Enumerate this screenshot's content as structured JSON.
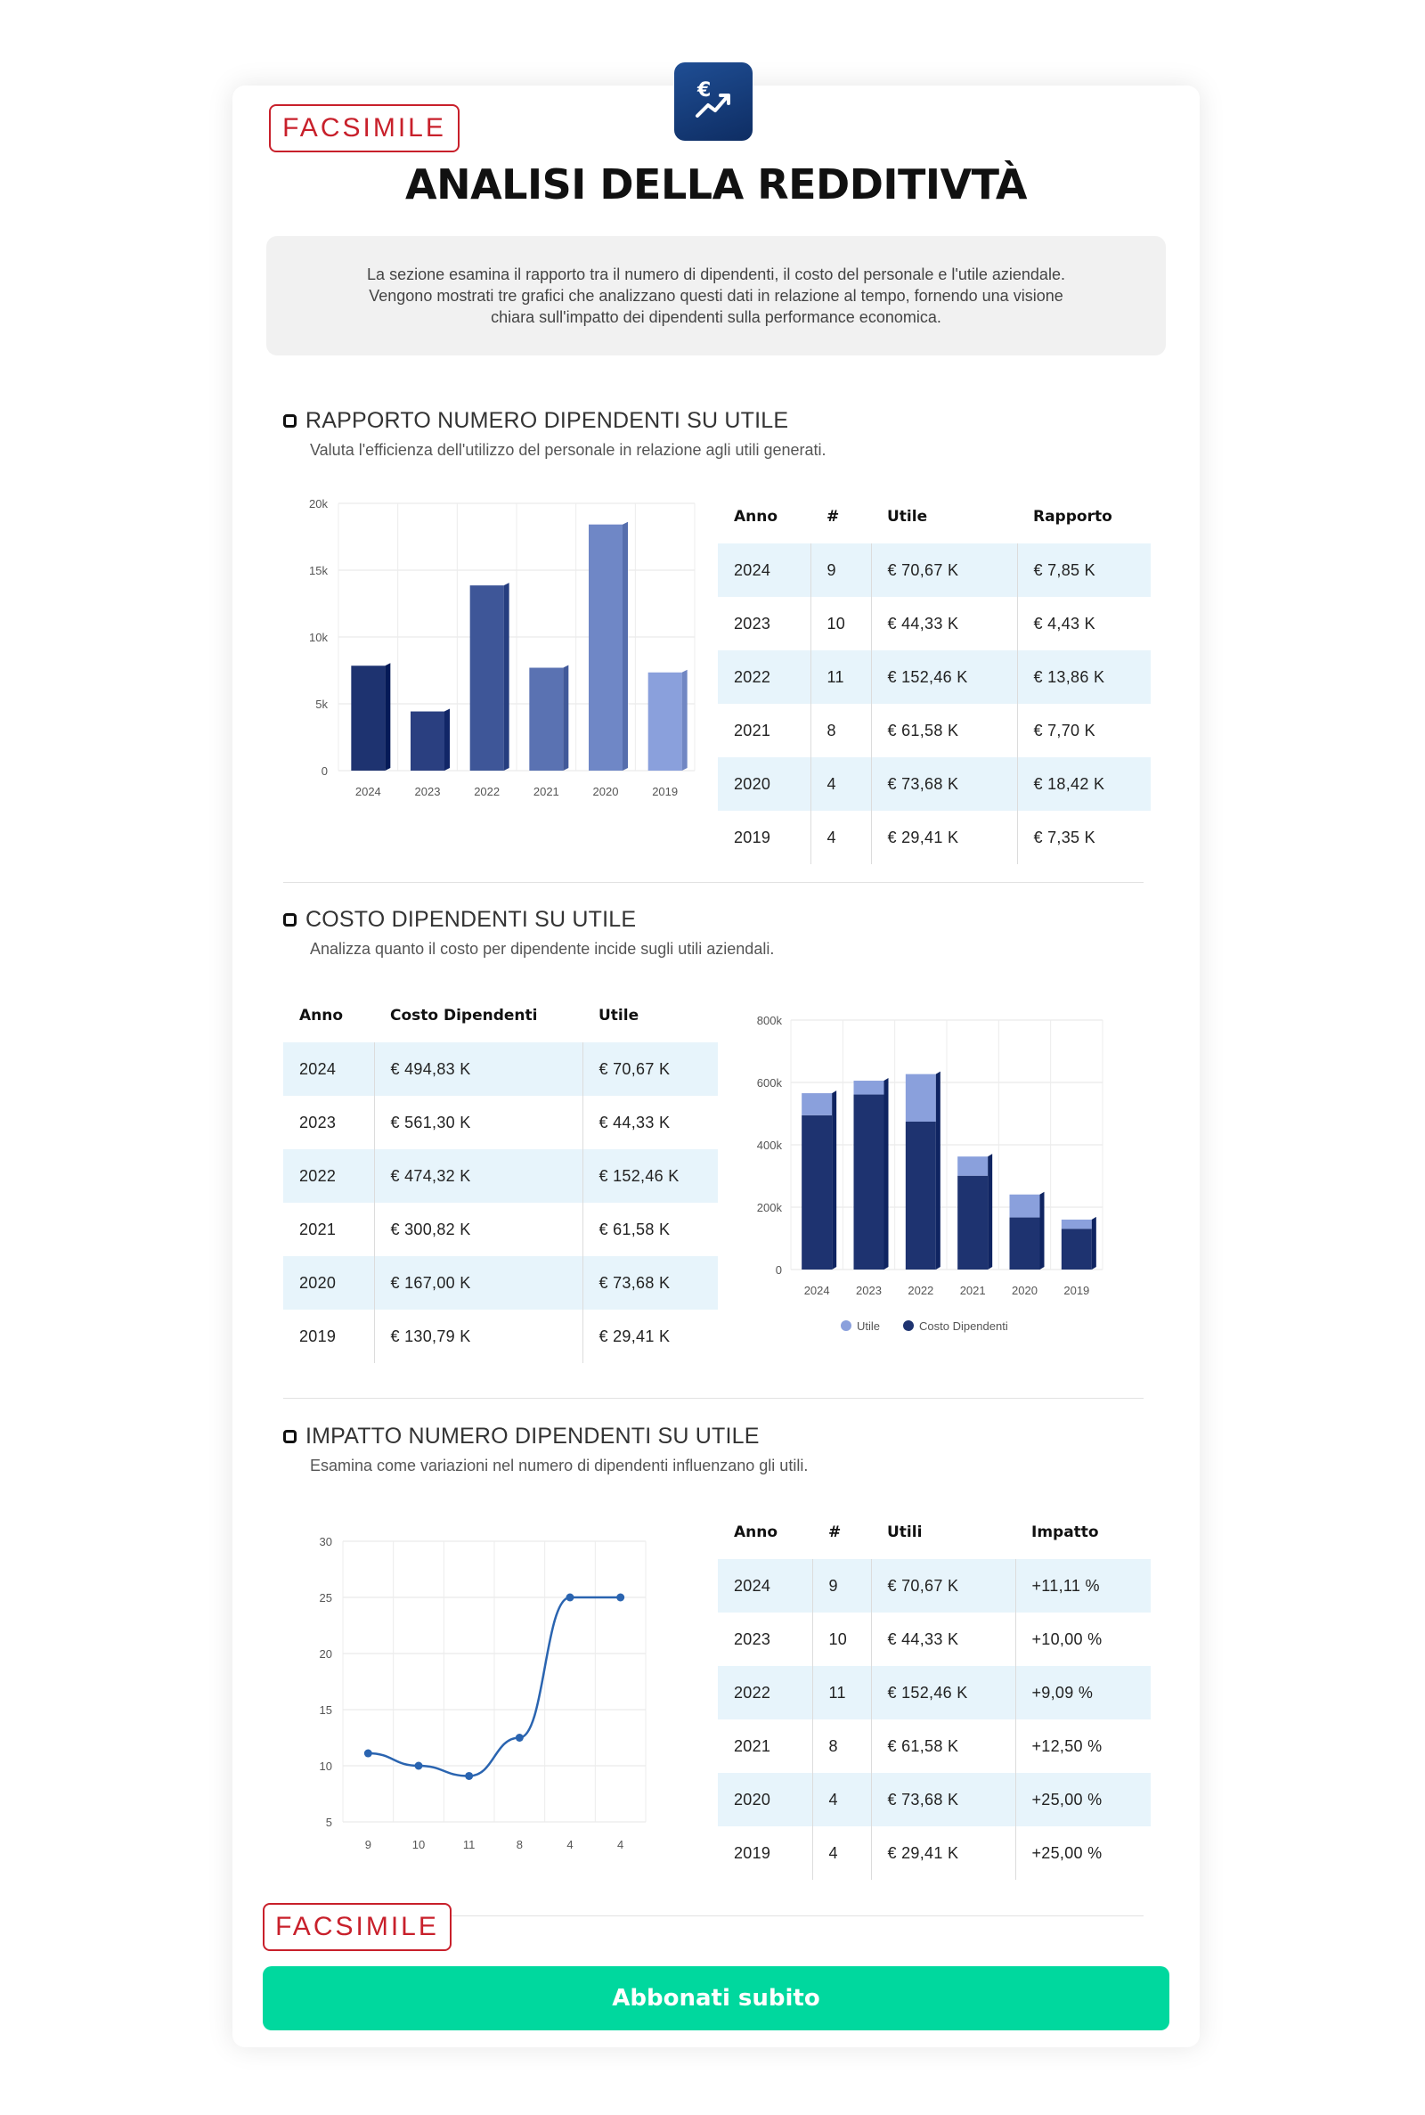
{
  "header": {
    "stamp": "FACSIMILE",
    "title": "ANALISI DELLA REDDITIVTÀ",
    "intro": "La sezione esamina il rapporto tra il numero di dipendenti, il costo del personale e l'utile aziendale. Vengono mostrati tre grafici che analizzano questi dati in relazione al tempo, fornendo una visione chiara sull'impatto dei dipendenti sulla performance economica.",
    "logo_icon": "euro-trend-up-icon",
    "accent": "#1f4e94"
  },
  "section1": {
    "title": "RAPPORTO NUMERO DIPENDENTI SU UTILE",
    "subtitle": "Valuta l'efficienza dell'utilizzo del personale in relazione agli utili generati.",
    "table": {
      "headers": [
        "Anno",
        "#",
        "Utile",
        "Rapporto"
      ],
      "rows": [
        [
          "2024",
          "9",
          "€ 70,67 K",
          "€ 7,85 K"
        ],
        [
          "2023",
          "10",
          "€ 44,33 K",
          "€ 4,43 K"
        ],
        [
          "2022",
          "11",
          "€ 152,46 K",
          "€ 13,86 K"
        ],
        [
          "2021",
          "8",
          "€ 61,58 K",
          "€ 7,70 K"
        ],
        [
          "2020",
          "4",
          "€ 73,68 K",
          "€ 18,42 K"
        ],
        [
          "2019",
          "4",
          "€ 29,41 K",
          "€ 7,35 K"
        ]
      ]
    }
  },
  "section2": {
    "title": "COSTO DIPENDENTI SU UTILE",
    "subtitle": "Analizza quanto il costo per dipendente incide sugli utili aziendali.",
    "table": {
      "headers": [
        "Anno",
        "Costo Dipendenti",
        "Utile"
      ],
      "rows": [
        [
          "2024",
          "€ 494,83 K",
          "€ 70,67 K"
        ],
        [
          "2023",
          "€ 561,30 K",
          "€ 44,33 K"
        ],
        [
          "2022",
          "€ 474,32 K",
          "€ 152,46 K"
        ],
        [
          "2021",
          "€ 300,82 K",
          "€ 61,58 K"
        ],
        [
          "2020",
          "€ 167,00 K",
          "€ 73,68 K"
        ],
        [
          "2019",
          "€ 130,79 K",
          "€ 29,41 K"
        ]
      ]
    }
  },
  "section3": {
    "title": "IMPATTO NUMERO DIPENDENTI SU UTILE",
    "subtitle": "Esamina come variazioni nel numero di dipendenti influenzano gli utili.",
    "table": {
      "headers": [
        "Anno",
        "#",
        "Utili",
        "Impatto"
      ],
      "rows": [
        [
          "2024",
          "9",
          "€ 70,67 K",
          "+11,11 %"
        ],
        [
          "2023",
          "10",
          "€ 44,33 K",
          "+10,00 %"
        ],
        [
          "2022",
          "11",
          "€ 152,46 K",
          "+9,09 %"
        ],
        [
          "2021",
          "8",
          "€ 61,58 K",
          "+12,50 %"
        ],
        [
          "2020",
          "4",
          "€ 73,68 K",
          "+25,00 %"
        ],
        [
          "2019",
          "4",
          "€ 29,41 K",
          "+25,00 %"
        ]
      ]
    }
  },
  "cta": {
    "label": "Abbonati subito",
    "color": "#00d89e"
  },
  "chart_data": [
    {
      "type": "bar",
      "categories": [
        "2024",
        "2023",
        "2022",
        "2021",
        "2020",
        "2019"
      ],
      "values": [
        7850,
        4430,
        13860,
        7700,
        18420,
        7350
      ],
      "ylim": [
        0,
        20000
      ],
      "yticks": [
        "0",
        "5k",
        "10k",
        "15k",
        "20k"
      ],
      "colors": [
        "#1e3370",
        "#2a3f80",
        "#3e5698",
        "#5a72b2",
        "#6f87c6",
        "#8aa0dc"
      ],
      "grid": true
    },
    {
      "type": "bar",
      "stacked": true,
      "categories": [
        "2024",
        "2023",
        "2022",
        "2021",
        "2020",
        "2019"
      ],
      "series": [
        {
          "name": "Costo Dipendenti",
          "values": [
            494.83,
            561.3,
            474.32,
            300.82,
            167.0,
            130.79
          ],
          "color": "#1e3370"
        },
        {
          "name": "Utile",
          "values": [
            70.67,
            44.33,
            152.46,
            61.58,
            73.68,
            29.41
          ],
          "color": "#8aa0dc"
        }
      ],
      "ylim": [
        0,
        800
      ],
      "yticks": [
        "0",
        "200k",
        "400k",
        "600k",
        "800k"
      ],
      "legend": "bottom",
      "grid": true
    },
    {
      "type": "line",
      "categories": [
        "9",
        "10",
        "11",
        "8",
        "4",
        "4"
      ],
      "values": [
        11.11,
        10.0,
        9.09,
        12.5,
        25.0,
        25.0
      ],
      "ylim": [
        5,
        30
      ],
      "yticks": [
        "5",
        "10",
        "15",
        "20",
        "25",
        "30"
      ],
      "color": "#2a64b0",
      "grid": true
    }
  ]
}
